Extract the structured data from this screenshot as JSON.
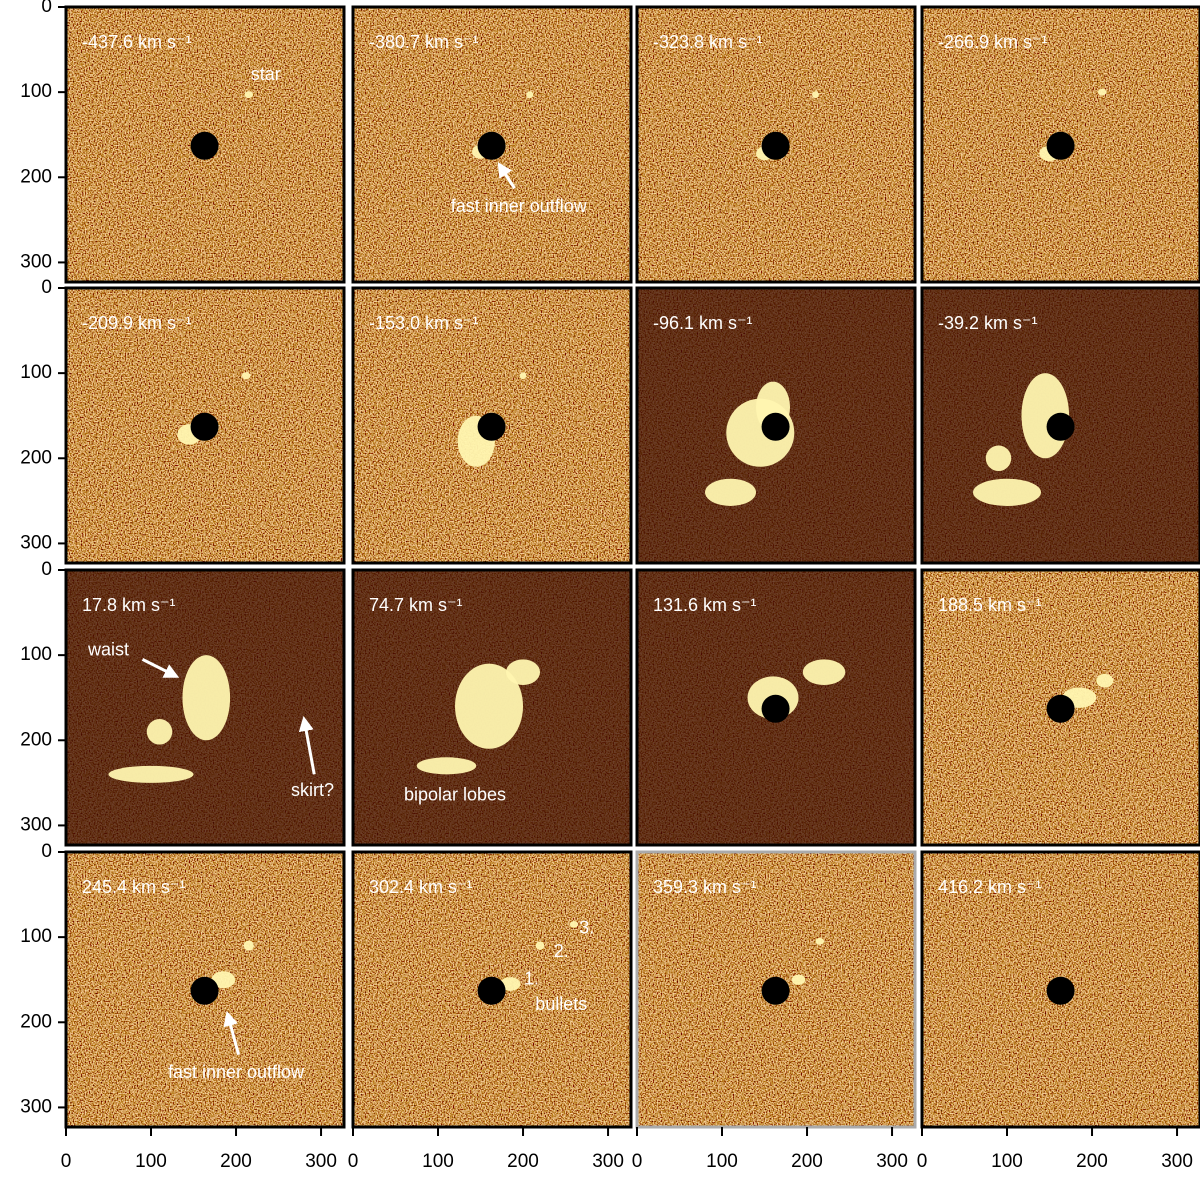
{
  "panels": [
    {
      "label": "-437.6 km s⁻¹",
      "annotations": [
        "star"
      ]
    },
    {
      "label": "-380.7 km s⁻¹",
      "annotations": [
        "fast inner outflow"
      ]
    },
    {
      "label": "-323.8 km s⁻¹",
      "annotations": []
    },
    {
      "label": "-266.9 km s⁻¹",
      "annotations": []
    },
    {
      "label": "-209.9 km s⁻¹",
      "annotations": []
    },
    {
      "label": "-153.0 km s⁻¹",
      "annotations": []
    },
    {
      "label": "-96.1 km s⁻¹",
      "annotations": []
    },
    {
      "label": "-39.2 km s⁻¹",
      "annotations": []
    },
    {
      "label": "17.8 km s⁻¹",
      "annotations": [
        "waist",
        "skirt?"
      ]
    },
    {
      "label": "74.7 km s⁻¹",
      "annotations": [
        "bipolar lobes"
      ]
    },
    {
      "label": "131.6 km s⁻¹",
      "annotations": []
    },
    {
      "label": "188.5 km s⁻¹",
      "annotations": []
    },
    {
      "label": "245.4 km s⁻¹",
      "annotations": [
        "fast inner outflow"
      ]
    },
    {
      "label": "302.4 km s⁻¹",
      "annotations": [
        "3.",
        "2.",
        "1.",
        "bullets"
      ]
    },
    {
      "label": "359.3 km s⁻¹",
      "annotations": []
    },
    {
      "label": "416.2 km s⁻¹",
      "annotations": []
    }
  ],
  "x_axis": {
    "lim": [
      0,
      327
    ],
    "ticks": [
      0,
      100,
      200,
      300
    ]
  },
  "y_axis": {
    "lim": [
      0,
      323
    ],
    "ticks": [
      0,
      100,
      200,
      300
    ]
  }
}
